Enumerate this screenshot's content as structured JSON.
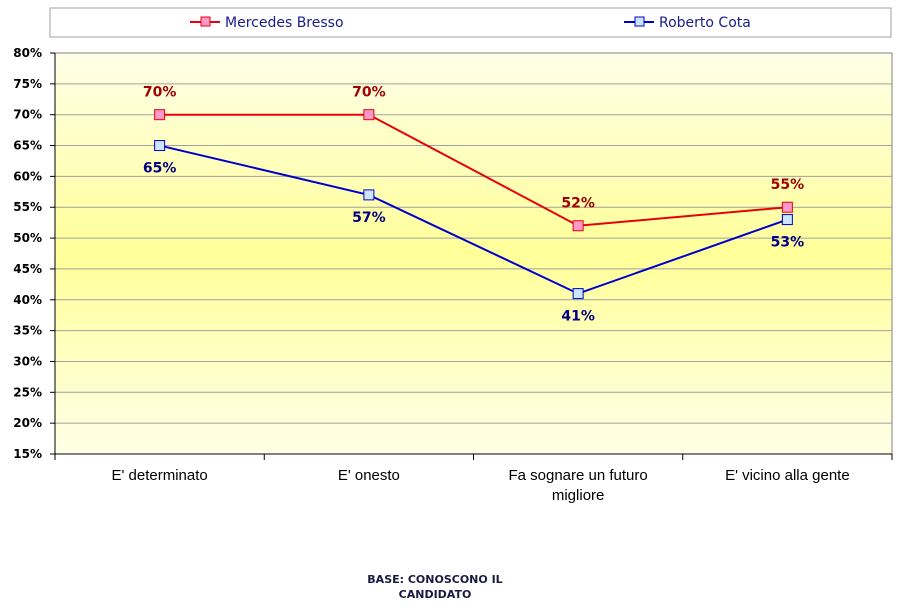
{
  "chart_data": {
    "type": "line",
    "categories": [
      [
        "E' determinato"
      ],
      [
        "E' onesto"
      ],
      [
        "Fa sognare un futuro",
        "migliore"
      ],
      [
        "E' vicino alla gente"
      ]
    ],
    "series": [
      {
        "name": "Mercedes Bresso",
        "values": [
          70,
          70,
          52,
          55
        ],
        "labels": [
          "70%",
          "70%",
          "52%",
          "55%"
        ],
        "color": "#e8000c",
        "marker_fill": "#ff99cc",
        "label_color": "#a00000"
      },
      {
        "name": "Roberto Cota",
        "values": [
          65,
          57,
          41,
          53
        ],
        "labels": [
          "65%",
          "57%",
          "41%",
          "53%"
        ],
        "color": "#0000cc",
        "marker_fill": "#cce6ff",
        "label_color": "#000080"
      }
    ],
    "y_ticks": [
      "15%",
      "20%",
      "25%",
      "30%",
      "35%",
      "40%",
      "45%",
      "50%",
      "55%",
      "60%",
      "65%",
      "70%",
      "75%",
      "80%"
    ],
    "ylim": [
      15,
      80
    ],
    "grid": true,
    "legend_position": "top",
    "plot_background": [
      "#ffffe0",
      "#ffff99"
    ]
  },
  "footer": {
    "line1": "BASE: CONOSCONO IL",
    "line2": "CANDIDATO"
  }
}
